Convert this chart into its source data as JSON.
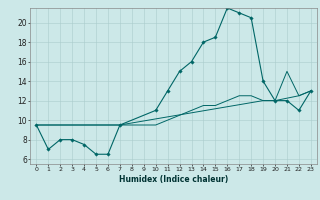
{
  "xlabel": "Humidex (Indice chaleur)",
  "ylabel": "",
  "background_color": "#cce8e8",
  "grid_color": "#aacccc",
  "line_color": "#006666",
  "xlim": [
    -0.5,
    23.5
  ],
  "ylim": [
    5.5,
    21.5
  ],
  "xticks": [
    0,
    1,
    2,
    3,
    4,
    5,
    6,
    7,
    8,
    9,
    10,
    11,
    12,
    13,
    14,
    15,
    16,
    17,
    18,
    19,
    20,
    21,
    22,
    23
  ],
  "yticks": [
    6,
    8,
    10,
    12,
    14,
    16,
    18,
    20
  ],
  "main_line_x": [
    0,
    1,
    2,
    3,
    4,
    5,
    6,
    7,
    10,
    11,
    12,
    13,
    14,
    15,
    16,
    17,
    18,
    19,
    20,
    21,
    22,
    23
  ],
  "main_line_y": [
    9.5,
    7.0,
    8.0,
    8.0,
    7.5,
    6.5,
    6.5,
    9.5,
    11.0,
    13.0,
    15.0,
    16.0,
    18.0,
    18.5,
    21.5,
    21.0,
    20.5,
    14.0,
    12.0,
    12.0,
    11.0,
    13.0
  ],
  "line2_x": [
    0,
    7,
    10,
    11,
    12,
    13,
    14,
    15,
    16,
    17,
    18,
    19,
    20,
    21,
    22,
    23
  ],
  "line2_y": [
    9.5,
    9.5,
    9.5,
    10.0,
    10.5,
    11.0,
    11.5,
    11.5,
    12.0,
    12.5,
    12.5,
    12.0,
    12.0,
    15.0,
    12.5,
    13.0
  ],
  "line3_x": [
    0,
    7,
    19,
    20,
    22,
    23
  ],
  "line3_y": [
    9.5,
    9.5,
    12.0,
    12.0,
    12.5,
    13.0
  ],
  "marker_x": [
    0,
    1,
    2,
    3,
    4,
    5,
    6,
    7,
    10,
    11,
    12,
    13,
    14,
    15,
    16,
    17,
    18,
    19,
    20,
    21,
    22,
    23
  ],
  "marker_y": [
    9.5,
    7.0,
    8.0,
    8.0,
    7.5,
    6.5,
    6.5,
    9.5,
    11.0,
    13.0,
    15.0,
    16.0,
    18.0,
    18.5,
    21.5,
    21.0,
    20.5,
    14.0,
    12.0,
    12.0,
    11.0,
    13.0
  ]
}
